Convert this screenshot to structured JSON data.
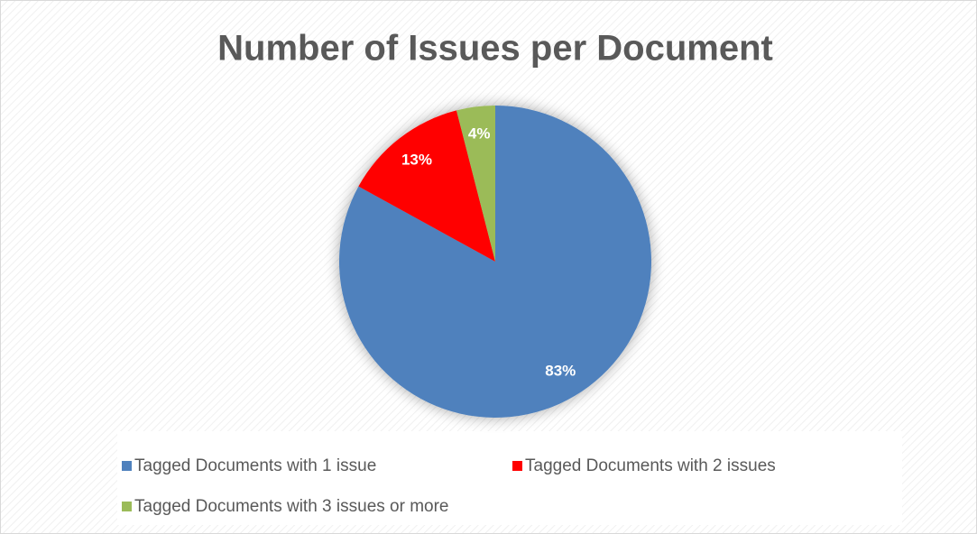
{
  "chart_data": {
    "type": "pie",
    "title": "Number of Issues per Document",
    "categories": [
      "Tagged Documents with 1 issue",
      "Tagged Documents with 2 issues",
      "Tagged Documents with 3 issues or more"
    ],
    "values": [
      83,
      13,
      4
    ],
    "value_labels": [
      "83%",
      "13%",
      "4%"
    ],
    "colors": [
      "#4f81bd",
      "#ff0000",
      "#9bbb59"
    ],
    "legend": "bottom"
  }
}
